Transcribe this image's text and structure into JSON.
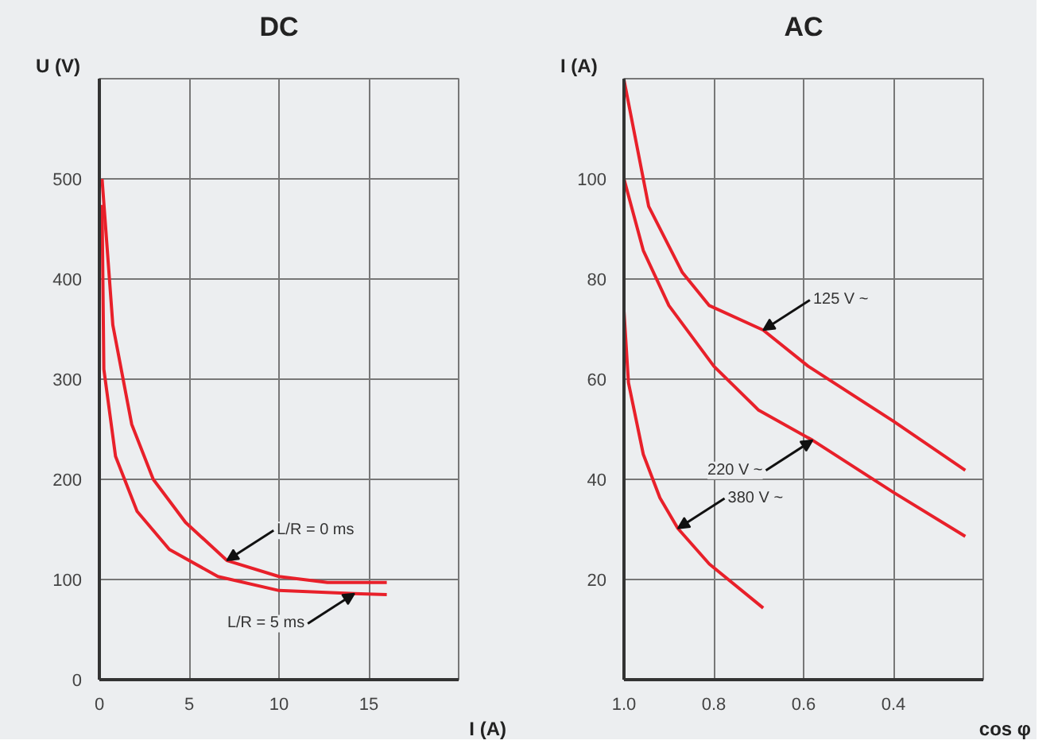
{
  "chart_data": [
    {
      "type": "line",
      "title": "DC",
      "xlabel": "I (A)",
      "ylabel": "U (V)",
      "xlim": [
        0,
        20
      ],
      "ylim": [
        0,
        600
      ],
      "xticks": [
        0,
        5,
        10,
        15,
        {
          "value": 20,
          "label": null
        }
      ],
      "yticks": [
        0,
        100,
        200,
        300,
        400,
        500,
        {
          "value": 600,
          "label": null
        }
      ],
      "grid": true,
      "marker": "none",
      "line_style": "solid",
      "series": [
        {
          "color": "#e8202a",
          "x": [
            0.15,
            0.75,
            1.8,
            3,
            4.8,
            7.1,
            10,
            12.7,
            16
          ],
          "values": [
            500,
            354,
            255,
            200,
            157,
            119,
            103,
            97,
            97
          ]
        },
        {
          "color": "#e8202a",
          "x": [
            0.15,
            0.25,
            0.9,
            2.1,
            3.9,
            6.6,
            10,
            14.2,
            16
          ],
          "values": [
            474,
            310,
            223,
            168,
            130,
            103,
            89,
            86,
            85
          ]
        }
      ],
      "annotations": [
        {
          "text": "L/R = 0 ms",
          "x": 7.1,
          "y": 119
        },
        {
          "text": "L/R = 5 ms",
          "x": 14.2,
          "y": 86
        }
      ]
    },
    {
      "type": "line",
      "title": "AC",
      "xlabel": "cos φ",
      "ylabel": "I (A)",
      "xlim": [
        1.0,
        0.2
      ],
      "ylim": [
        0,
        120
      ],
      "xticks": [
        {
          "value": 1.0,
          "label": "1.0"
        },
        0.8,
        0.6,
        0.4,
        {
          "value": 0.2,
          "label": null
        }
      ],
      "yticks": [
        20,
        40,
        60,
        80,
        100,
        {
          "value": 120,
          "label": null
        }
      ],
      "grid": true,
      "marker": "none",
      "line_style": "solid",
      "series": [
        {
          "color": "#e8202a",
          "x": [
            1.0,
            0.945,
            0.87,
            0.81,
            0.69,
            0.59,
            0.4,
            0.24
          ],
          "values": [
            119.8,
            94.5,
            81.3,
            74.7,
            69.8,
            62.6,
            51.6,
            41.8
          ]
        },
        {
          "color": "#e8202a",
          "x": [
            1.0,
            0.957,
            0.9,
            0.8,
            0.7,
            0.58,
            0.4,
            0.24
          ],
          "values": [
            100,
            85.7,
            74.7,
            62.6,
            53.8,
            47.8,
            37.4,
            28.6
          ]
        },
        {
          "color": "#e8202a",
          "x": [
            1.0,
            0.99,
            0.957,
            0.92,
            0.88,
            0.81,
            0.69
          ],
          "values": [
            73.6,
            59.3,
            45,
            36.3,
            30.2,
            23.1,
            14.3
          ]
        }
      ],
      "annotations": [
        {
          "text": "125 V ~",
          "x": 0.69,
          "y": 69.8
        },
        {
          "text": "220 V ~",
          "x": 0.58,
          "y": 47.8
        },
        {
          "text": "380 V ~",
          "x": 0.88,
          "y": 30.2
        }
      ]
    }
  ]
}
